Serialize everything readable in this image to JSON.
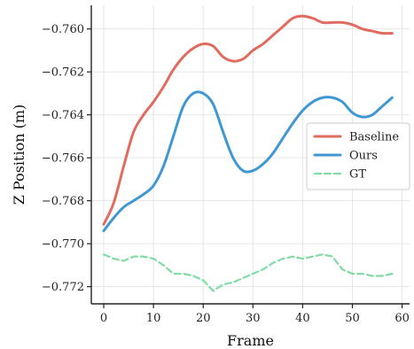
{
  "chart_data": {
    "type": "line",
    "xlabel": "Frame",
    "ylabel": "Z Position (m)",
    "xlim": [
      -2.5,
      61.5
    ],
    "ylim": [
      -0.7728,
      -0.7589
    ],
    "grid": true,
    "legend_position": "right",
    "x_ticks": [
      0,
      10,
      20,
      30,
      40,
      50,
      60
    ],
    "x_tick_labels": [
      "0",
      "10",
      "20",
      "30",
      "40",
      "50",
      "60"
    ],
    "y_ticks": [
      -0.76,
      -0.762,
      -0.764,
      -0.766,
      -0.768,
      -0.77,
      -0.772
    ],
    "y_tick_labels": [
      "−0.760",
      "−0.762",
      "−0.764",
      "−0.766",
      "−0.768",
      "−0.770",
      "−0.772"
    ],
    "series": [
      {
        "name": "Baseline",
        "color": "#e06c60",
        "style": "solid",
        "x": [
          0,
          2,
          4,
          6,
          8,
          10,
          12,
          14,
          16,
          18,
          20,
          22,
          24,
          26,
          28,
          30,
          32,
          34,
          36,
          38,
          40,
          42,
          44,
          46,
          48,
          50,
          52,
          54,
          56,
          58
        ],
        "y": [
          -0.7691,
          -0.7681,
          -0.7664,
          -0.7648,
          -0.764,
          -0.7634,
          -0.7627,
          -0.7619,
          -0.7613,
          -0.7609,
          -0.7607,
          -0.7608,
          -0.7613,
          -0.7615,
          -0.7614,
          -0.761,
          -0.7607,
          -0.7603,
          -0.7599,
          -0.7595,
          -0.7594,
          -0.7595,
          -0.7597,
          -0.7597,
          -0.7597,
          -0.7598,
          -0.76,
          -0.7601,
          -0.7602,
          -0.7602
        ]
      },
      {
        "name": "Ours",
        "color": "#3f97d3",
        "style": "solid",
        "x": [
          0,
          2,
          4,
          6,
          8,
          10,
          12,
          14,
          16,
          18,
          20,
          22,
          24,
          26,
          28,
          30,
          32,
          34,
          36,
          38,
          40,
          42,
          44,
          46,
          48,
          50,
          52,
          54,
          56,
          58
        ],
        "y": [
          -0.7694,
          -0.7688,
          -0.7683,
          -0.768,
          -0.7677,
          -0.7673,
          -0.7664,
          -0.765,
          -0.7636,
          -0.763,
          -0.763,
          -0.7635,
          -0.7648,
          -0.766,
          -0.7666,
          -0.7666,
          -0.7663,
          -0.7658,
          -0.7651,
          -0.7644,
          -0.7638,
          -0.7634,
          -0.7632,
          -0.7632,
          -0.7634,
          -0.7639,
          -0.7641,
          -0.764,
          -0.7636,
          -0.7632
        ]
      },
      {
        "name": "GT",
        "color": "#7fdca5",
        "style": "dashed",
        "x": [
          0,
          2,
          4,
          6,
          8,
          10,
          12,
          14,
          16,
          18,
          20,
          22,
          24,
          26,
          28,
          30,
          32,
          34,
          36,
          38,
          40,
          42,
          44,
          46,
          48,
          50,
          52,
          54,
          56,
          58
        ],
        "y": [
          -0.7705,
          -0.7707,
          -0.7708,
          -0.7706,
          -0.7706,
          -0.7707,
          -0.771,
          -0.7714,
          -0.7714,
          -0.7715,
          -0.7717,
          -0.7722,
          -0.7719,
          -0.7718,
          -0.7716,
          -0.7714,
          -0.7712,
          -0.7709,
          -0.7707,
          -0.7706,
          -0.7707,
          -0.7706,
          -0.7705,
          -0.7706,
          -0.7712,
          -0.7714,
          -0.7714,
          -0.7715,
          -0.7715,
          -0.7714
        ]
      }
    ]
  }
}
